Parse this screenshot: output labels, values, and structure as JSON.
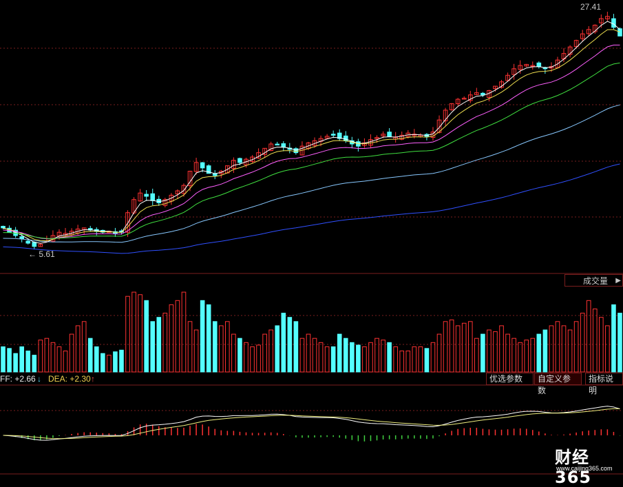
{
  "price_panel": {
    "high_label": "27.41",
    "low_label": "5.61"
  },
  "volume_panel": {
    "tab_label": "成交量"
  },
  "macd_panel": {
    "diff_label": "FF: +2.66",
    "diff_arrow": "↓",
    "dea_label": "DEA: +2.30",
    "dea_arrow": "↑",
    "buttons": {
      "optimize": "优选参数",
      "custom": "自定义参数",
      "help": "指标说明"
    }
  },
  "logo": {
    "main": "财经365",
    "sub": "www.caijing365.com"
  },
  "colors": {
    "up": "#ff3232",
    "down": "#54ffff",
    "grid": "#7a1e1e",
    "ma5": "#ffffff",
    "ma10": "#f0e050",
    "ma20": "#ff60ff",
    "ma30": "#40e040",
    "ma60": "#88c8ff",
    "ma120": "#3050ff",
    "diff": "#ffffff",
    "dea": "#f0f080"
  },
  "chart_data": {
    "type": "candlestick",
    "title": "",
    "price_range": [
      5.0,
      28.0
    ],
    "high_value": 27.41,
    "low_value": 5.61,
    "candles_count": 100,
    "close_path": [
      7.6,
      7.2,
      6.9,
      6.6,
      6.2,
      5.9,
      6.1,
      6.4,
      6.9,
      7.2,
      7.1,
      7.3,
      7.5,
      7.6,
      7.4,
      7.3,
      7.2,
      7.3,
      7.1,
      7.2,
      9.0,
      10.2,
      10.8,
      10.5,
      10.1,
      9.9,
      10.2,
      10.6,
      11.0,
      11.5,
      12.8,
      13.6,
      13.1,
      12.6,
      12.4,
      12.8,
      13.3,
      13.8,
      13.6,
      13.9,
      14.1,
      14.5,
      14.9,
      15.3,
      15.2,
      15.0,
      14.8,
      14.5,
      15.1,
      15.4,
      15.6,
      15.8,
      16.0,
      16.1,
      15.8,
      15.6,
      15.3,
      15.1,
      15.4,
      15.7,
      15.9,
      16.2,
      16.0,
      15.9,
      16.1,
      16.3,
      16.2,
      16.1,
      16.0,
      16.4,
      17.5,
      18.4,
      19.0,
      19.4,
      19.5,
      19.8,
      20.0,
      19.8,
      20.2,
      20.6,
      21.0,
      21.6,
      22.2,
      22.5,
      22.6,
      22.5,
      22.4,
      22.2,
      22.4,
      23.0,
      23.6,
      24.2,
      24.8,
      25.4,
      25.8,
      26.2,
      26.8,
      27.0,
      26.0,
      25.2
    ],
    "volume": [
      30,
      28,
      22,
      30,
      25,
      20,
      38,
      40,
      35,
      30,
      25,
      45,
      55,
      60,
      40,
      30,
      22,
      20,
      24,
      26,
      90,
      95,
      92,
      85,
      60,
      65,
      70,
      80,
      85,
      95,
      60,
      50,
      85,
      80,
      60,
      55,
      60,
      45,
      40,
      35,
      30,
      32,
      45,
      50,
      55,
      70,
      65,
      60,
      40,
      45,
      40,
      35,
      30,
      30,
      45,
      40,
      35,
      32,
      30,
      35,
      40,
      38,
      35,
      30,
      25,
      25,
      30,
      30,
      28,
      35,
      45,
      60,
      62,
      55,
      58,
      60,
      40,
      45,
      50,
      48,
      55,
      45,
      40,
      35,
      38,
      40,
      45,
      50,
      55,
      60,
      55,
      50,
      60,
      70,
      85,
      75,
      65,
      55,
      80,
      70
    ],
    "ma_periods": [
      5,
      10,
      20,
      30,
      60,
      120
    ]
  }
}
